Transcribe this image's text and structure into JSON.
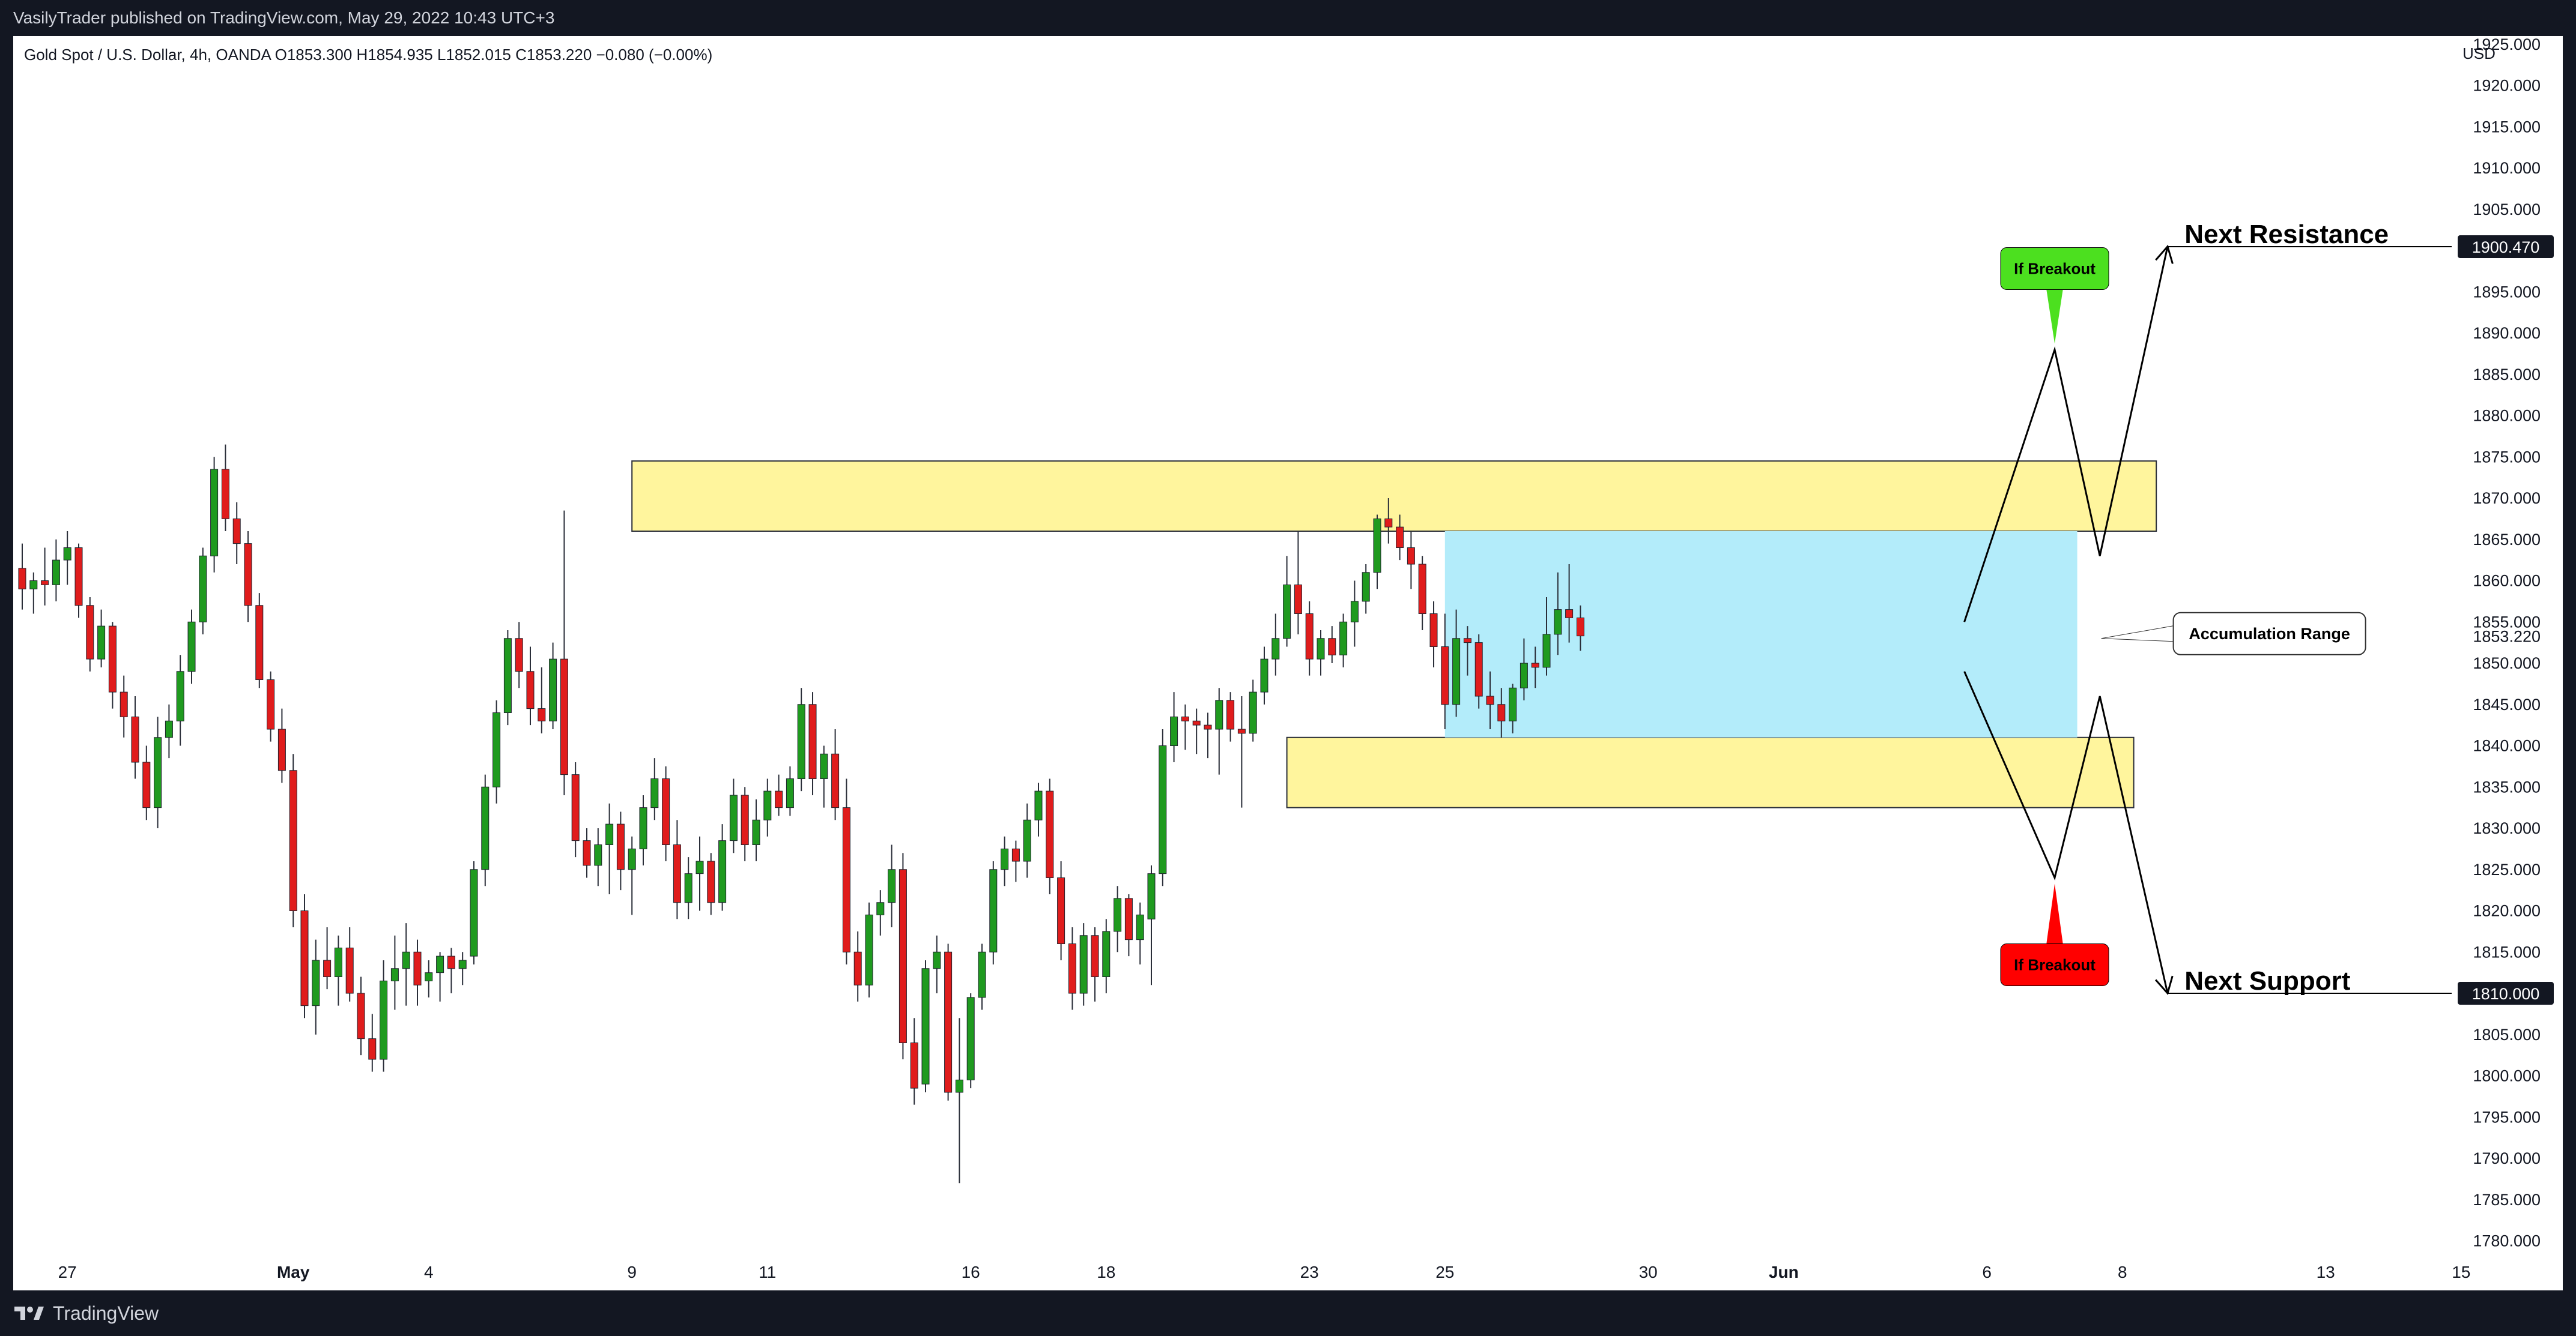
{
  "header": {
    "published_line": "VasilyTrader published on TradingView.com, May 29, 2022 10:43 UTC+3"
  },
  "symbol_bar": {
    "text": "Gold Spot / U.S. Dollar, 4h, OANDA  O1853.300  H1854.935  L1852.015  C1853.220  −0.080 (−0.00%)"
  },
  "footer": {
    "brand": "TradingView",
    "brand_icon": "tradingview-logo-icon"
  },
  "chart_data": {
    "type": "candlestick",
    "currency_label": "USD",
    "ylim": [
      1778,
      1926
    ],
    "y_ticks": [
      1780,
      1785,
      1790,
      1795,
      1800,
      1805,
      1810,
      1815,
      1820,
      1825,
      1830,
      1835,
      1840,
      1845,
      1850,
      1855,
      1860,
      1865,
      1870,
      1875,
      1880,
      1885,
      1890,
      1895,
      1900,
      1905,
      1910,
      1915,
      1920,
      1925
    ],
    "x_ticks": [
      {
        "label": "27",
        "index": 4
      },
      {
        "label": "May",
        "index": 24
      },
      {
        "label": "4",
        "index": 36
      },
      {
        "label": "9",
        "index": 54
      },
      {
        "label": "11",
        "index": 66
      },
      {
        "label": "16",
        "index": 84
      },
      {
        "label": "18",
        "index": 96
      },
      {
        "label": "23",
        "index": 114
      },
      {
        "label": "25",
        "index": 126
      },
      {
        "label": "30",
        "index": 144
      },
      {
        "label": "Jun",
        "index": 156
      },
      {
        "label": "6",
        "index": 174
      },
      {
        "label": "8",
        "index": 186
      },
      {
        "label": "13",
        "index": 204
      },
      {
        "label": "15",
        "index": 216
      }
    ],
    "candles": [
      [
        1861.5,
        1864.5,
        1856.5,
        1859.0
      ],
      [
        1859.0,
        1861.0,
        1856.0,
        1860.0
      ],
      [
        1860.0,
        1864.0,
        1857.0,
        1859.5
      ],
      [
        1859.5,
        1865.0,
        1857.5,
        1862.5
      ],
      [
        1862.5,
        1866.0,
        1859.5,
        1864.0
      ],
      [
        1864.0,
        1864.5,
        1855.5,
        1857.0
      ],
      [
        1857.0,
        1858.0,
        1849.0,
        1850.5
      ],
      [
        1850.5,
        1856.5,
        1849.5,
        1854.5
      ],
      [
        1854.5,
        1855.0,
        1844.5,
        1846.5
      ],
      [
        1846.5,
        1848.5,
        1841.0,
        1843.5
      ],
      [
        1843.5,
        1846.0,
        1836.0,
        1838.0
      ],
      [
        1838.0,
        1840.0,
        1831.0,
        1832.5
      ],
      [
        1832.5,
        1843.5,
        1830.0,
        1841.0
      ],
      [
        1841.0,
        1845.0,
        1838.5,
        1843.0
      ],
      [
        1843.0,
        1851.0,
        1840.0,
        1849.0
      ],
      [
        1849.0,
        1856.5,
        1847.5,
        1855.0
      ],
      [
        1855.0,
        1864.0,
        1853.5,
        1863.0
      ],
      [
        1863.0,
        1875.0,
        1861.0,
        1873.5
      ],
      [
        1873.5,
        1876.5,
        1866.0,
        1867.5
      ],
      [
        1867.5,
        1869.5,
        1862.0,
        1864.5
      ],
      [
        1864.5,
        1866.0,
        1855.0,
        1857.0
      ],
      [
        1857.0,
        1858.5,
        1847.0,
        1848.0
      ],
      [
        1848.0,
        1849.0,
        1840.5,
        1842.0
      ],
      [
        1842.0,
        1844.5,
        1835.5,
        1837.0
      ],
      [
        1837.0,
        1839.0,
        1818.0,
        1820.0
      ],
      [
        1820.0,
        1822.0,
        1807.0,
        1808.5
      ],
      [
        1808.5,
        1816.5,
        1805.0,
        1814.0
      ],
      [
        1814.0,
        1818.0,
        1810.5,
        1812.0
      ],
      [
        1812.0,
        1817.0,
        1808.5,
        1815.5
      ],
      [
        1815.5,
        1818.0,
        1809.0,
        1810.0
      ],
      [
        1810.0,
        1812.0,
        1802.5,
        1804.5
      ],
      [
        1804.5,
        1807.5,
        1800.5,
        1802.0
      ],
      [
        1802.0,
        1814.0,
        1800.5,
        1811.5
      ],
      [
        1811.5,
        1817.0,
        1808.0,
        1813.0
      ],
      [
        1813.0,
        1818.5,
        1808.5,
        1815.0
      ],
      [
        1815.0,
        1816.5,
        1808.5,
        1811.0
      ],
      [
        1811.5,
        1814.0,
        1809.5,
        1812.5
      ],
      [
        1812.5,
        1815.0,
        1809.0,
        1814.5
      ],
      [
        1814.5,
        1815.5,
        1810.0,
        1813.0
      ],
      [
        1813.0,
        1815.0,
        1811.0,
        1814.0
      ],
      [
        1814.5,
        1826.0,
        1813.5,
        1825.0
      ],
      [
        1825.0,
        1836.5,
        1823.0,
        1835.0
      ],
      [
        1835.0,
        1845.5,
        1833.0,
        1844.0
      ],
      [
        1844.0,
        1854.0,
        1842.5,
        1853.0
      ],
      [
        1853.0,
        1855.0,
        1847.0,
        1849.0
      ],
      [
        1849.0,
        1852.0,
        1842.5,
        1844.5
      ],
      [
        1844.5,
        1849.5,
        1841.5,
        1843.0
      ],
      [
        1843.0,
        1852.5,
        1842.0,
        1850.5
      ],
      [
        1850.5,
        1868.5,
        1834.0,
        1836.5
      ],
      [
        1836.5,
        1838.0,
        1826.5,
        1828.5
      ],
      [
        1828.5,
        1830.0,
        1824.0,
        1825.5
      ],
      [
        1825.5,
        1830.0,
        1823.0,
        1828.0
      ],
      [
        1828.0,
        1833.0,
        1822.0,
        1830.5
      ],
      [
        1830.5,
        1832.0,
        1822.5,
        1825.0
      ],
      [
        1825.0,
        1829.0,
        1819.5,
        1827.5
      ],
      [
        1827.5,
        1834.0,
        1825.5,
        1832.5
      ],
      [
        1832.5,
        1838.5,
        1831.0,
        1836.0
      ],
      [
        1836.0,
        1837.5,
        1826.0,
        1828.0
      ],
      [
        1828.0,
        1831.0,
        1819.0,
        1821.0
      ],
      [
        1821.0,
        1826.5,
        1819.0,
        1824.5
      ],
      [
        1824.5,
        1829.0,
        1820.0,
        1826.0
      ],
      [
        1826.0,
        1827.0,
        1819.5,
        1821.0
      ],
      [
        1821.0,
        1830.5,
        1820.0,
        1828.5
      ],
      [
        1828.5,
        1836.0,
        1827.0,
        1834.0
      ],
      [
        1834.0,
        1835.0,
        1826.0,
        1828.0
      ],
      [
        1828.0,
        1833.5,
        1826.0,
        1831.0
      ],
      [
        1831.0,
        1836.0,
        1829.0,
        1834.5
      ],
      [
        1834.5,
        1836.5,
        1831.5,
        1832.5
      ],
      [
        1832.5,
        1837.5,
        1831.5,
        1836.0
      ],
      [
        1836.0,
        1847.0,
        1834.5,
        1845.0
      ],
      [
        1845.0,
        1846.5,
        1834.0,
        1836.0
      ],
      [
        1836.0,
        1840.0,
        1832.5,
        1839.0
      ],
      [
        1839.0,
        1842.0,
        1831.0,
        1832.5
      ],
      [
        1832.5,
        1836.0,
        1813.5,
        1815.0
      ],
      [
        1815.0,
        1817.5,
        1809.0,
        1811.0
      ],
      [
        1811.0,
        1821.0,
        1809.5,
        1819.5
      ],
      [
        1819.5,
        1822.5,
        1817.0,
        1821.0
      ],
      [
        1821.0,
        1828.0,
        1818.0,
        1825.0
      ],
      [
        1825.0,
        1827.0,
        1802.0,
        1804.0
      ],
      [
        1804.0,
        1807.0,
        1796.5,
        1798.5
      ],
      [
        1799.0,
        1814.0,
        1798.0,
        1813.0
      ],
      [
        1813.0,
        1817.0,
        1810.0,
        1815.0
      ],
      [
        1815.0,
        1816.0,
        1797.0,
        1798.0
      ],
      [
        1798.0,
        1807.0,
        1787.0,
        1799.5
      ],
      [
        1799.5,
        1810.0,
        1798.5,
        1809.5
      ],
      [
        1809.5,
        1816.0,
        1808.0,
        1815.0
      ],
      [
        1815.0,
        1826.0,
        1813.5,
        1825.0
      ],
      [
        1825.0,
        1829.0,
        1823.0,
        1827.5
      ],
      [
        1827.5,
        1828.5,
        1823.5,
        1826.0
      ],
      [
        1826.0,
        1833.0,
        1824.0,
        1831.0
      ],
      [
        1831.0,
        1835.5,
        1829.0,
        1834.5
      ],
      [
        1834.5,
        1836.0,
        1822.0,
        1824.0
      ],
      [
        1824.0,
        1826.0,
        1814.0,
        1816.0
      ],
      [
        1816.0,
        1818.0,
        1808.0,
        1810.0
      ],
      [
        1810.0,
        1818.5,
        1808.5,
        1817.0
      ],
      [
        1817.0,
        1818.0,
        1809.0,
        1812.0
      ],
      [
        1812.0,
        1819.0,
        1810.0,
        1817.5
      ],
      [
        1817.5,
        1823.0,
        1815.0,
        1821.5
      ],
      [
        1821.5,
        1822.0,
        1814.5,
        1816.5
      ],
      [
        1816.5,
        1821.0,
        1813.5,
        1819.5
      ],
      [
        1819.0,
        1825.5,
        1811.0,
        1824.5
      ],
      [
        1824.5,
        1842.0,
        1823.0,
        1840.0
      ],
      [
        1840.0,
        1846.5,
        1838.0,
        1843.5
      ],
      [
        1843.5,
        1845.0,
        1839.5,
        1843.0
      ],
      [
        1843.0,
        1844.5,
        1839.0,
        1842.5
      ],
      [
        1842.5,
        1844.0,
        1838.5,
        1842.0
      ],
      [
        1842.0,
        1847.0,
        1836.5,
        1845.5
      ],
      [
        1845.5,
        1846.5,
        1840.5,
        1842.0
      ],
      [
        1842.0,
        1846.0,
        1832.5,
        1841.5
      ],
      [
        1841.5,
        1848.0,
        1840.5,
        1846.5
      ],
      [
        1846.5,
        1852.0,
        1845.0,
        1850.5
      ],
      [
        1850.5,
        1856.0,
        1848.5,
        1853.0
      ],
      [
        1853.0,
        1863.0,
        1852.0,
        1859.5
      ],
      [
        1859.5,
        1866.0,
        1853.5,
        1856.0
      ],
      [
        1856.0,
        1857.5,
        1848.5,
        1850.5
      ],
      [
        1850.5,
        1854.0,
        1848.5,
        1853.0
      ],
      [
        1853.0,
        1854.5,
        1850.0,
        1851.0
      ],
      [
        1851.0,
        1856.0,
        1849.5,
        1855.0
      ],
      [
        1855.0,
        1860.0,
        1852.0,
        1857.5
      ],
      [
        1857.5,
        1862.0,
        1856.0,
        1861.0
      ],
      [
        1861.0,
        1868.0,
        1859.0,
        1867.5
      ],
      [
        1867.5,
        1870.0,
        1864.5,
        1866.5
      ],
      [
        1866.5,
        1868.0,
        1862.5,
        1864.0
      ],
      [
        1864.0,
        1866.0,
        1859.0,
        1862.0
      ],
      [
        1862.0,
        1863.0,
        1854.0,
        1856.0
      ],
      [
        1856.0,
        1857.5,
        1849.5,
        1852.0
      ],
      [
        1852.0,
        1856.0,
        1842.0,
        1845.0
      ],
      [
        1845.0,
        1856.5,
        1843.5,
        1853.0
      ],
      [
        1853.0,
        1854.5,
        1848.5,
        1852.5
      ],
      [
        1852.5,
        1853.5,
        1844.5,
        1846.0
      ],
      [
        1846.0,
        1849.0,
        1842.0,
        1845.0
      ],
      [
        1845.0,
        1847.0,
        1841.0,
        1843.0
      ],
      [
        1843.0,
        1847.5,
        1841.5,
        1847.0
      ],
      [
        1847.0,
        1853.0,
        1845.5,
        1850.0
      ],
      [
        1850.0,
        1852.0,
        1847.0,
        1849.5
      ],
      [
        1849.5,
        1858.0,
        1848.5,
        1853.5
      ],
      [
        1853.5,
        1861.0,
        1851.0,
        1856.5
      ],
      [
        1856.5,
        1862.0,
        1852.5,
        1855.5
      ],
      [
        1855.5,
        1857.0,
        1851.5,
        1853.3
      ]
    ],
    "price_line": {
      "label": "1853.220",
      "price": 1853.22
    },
    "horizontal_lines": [
      {
        "price": 1900.47,
        "label": "1900.470",
        "text": "Next Resistance"
      },
      {
        "price": 1810.0,
        "label": "1810.000",
        "text": "Next Support"
      }
    ],
    "zones": [
      {
        "type": "resistance",
        "color": "#fff59d",
        "from_index": 54,
        "to_index": 189,
        "price_low": 1866,
        "price_high": 1874.5
      },
      {
        "type": "support",
        "color": "#fff59d",
        "from_index": 112,
        "to_index": 187,
        "price_low": 1832.5,
        "price_high": 1841.0
      },
      {
        "type": "accumulation",
        "color": "#b3ecfa",
        "from_index": 126,
        "to_index": 182,
        "price_low": 1841.0,
        "price_high": 1866
      }
    ],
    "scenario_paths": [
      {
        "color": "#000000",
        "points": [
          [
            172,
            1855
          ],
          [
            180,
            1888
          ],
          [
            184,
            1863
          ],
          [
            190,
            1900.5
          ]
        ]
      },
      {
        "color": "#000000",
        "points": [
          [
            172,
            1849
          ],
          [
            180,
            1824
          ],
          [
            184,
            1846
          ],
          [
            190,
            1810
          ]
        ]
      }
    ],
    "callouts": [
      {
        "text": "If Breakout",
        "fill": "#4ce01f",
        "text_color": "#000000",
        "anchor_index": 180,
        "anchor_price": 1888,
        "direction": "above"
      },
      {
        "text": "If Breakout",
        "fill": "#ff0000",
        "text_color": "#000000",
        "anchor_index": 180,
        "anchor_price": 1824,
        "direction": "below"
      },
      {
        "text": "Accumulation Range",
        "fill": "#ffffff",
        "text_color": "#000000",
        "anchor_index": 182,
        "anchor_price": 1853,
        "direction": "right"
      }
    ],
    "colors": {
      "up": "#1f9a1f",
      "down": "#e01c1c",
      "wick": "#2a2e39"
    }
  }
}
